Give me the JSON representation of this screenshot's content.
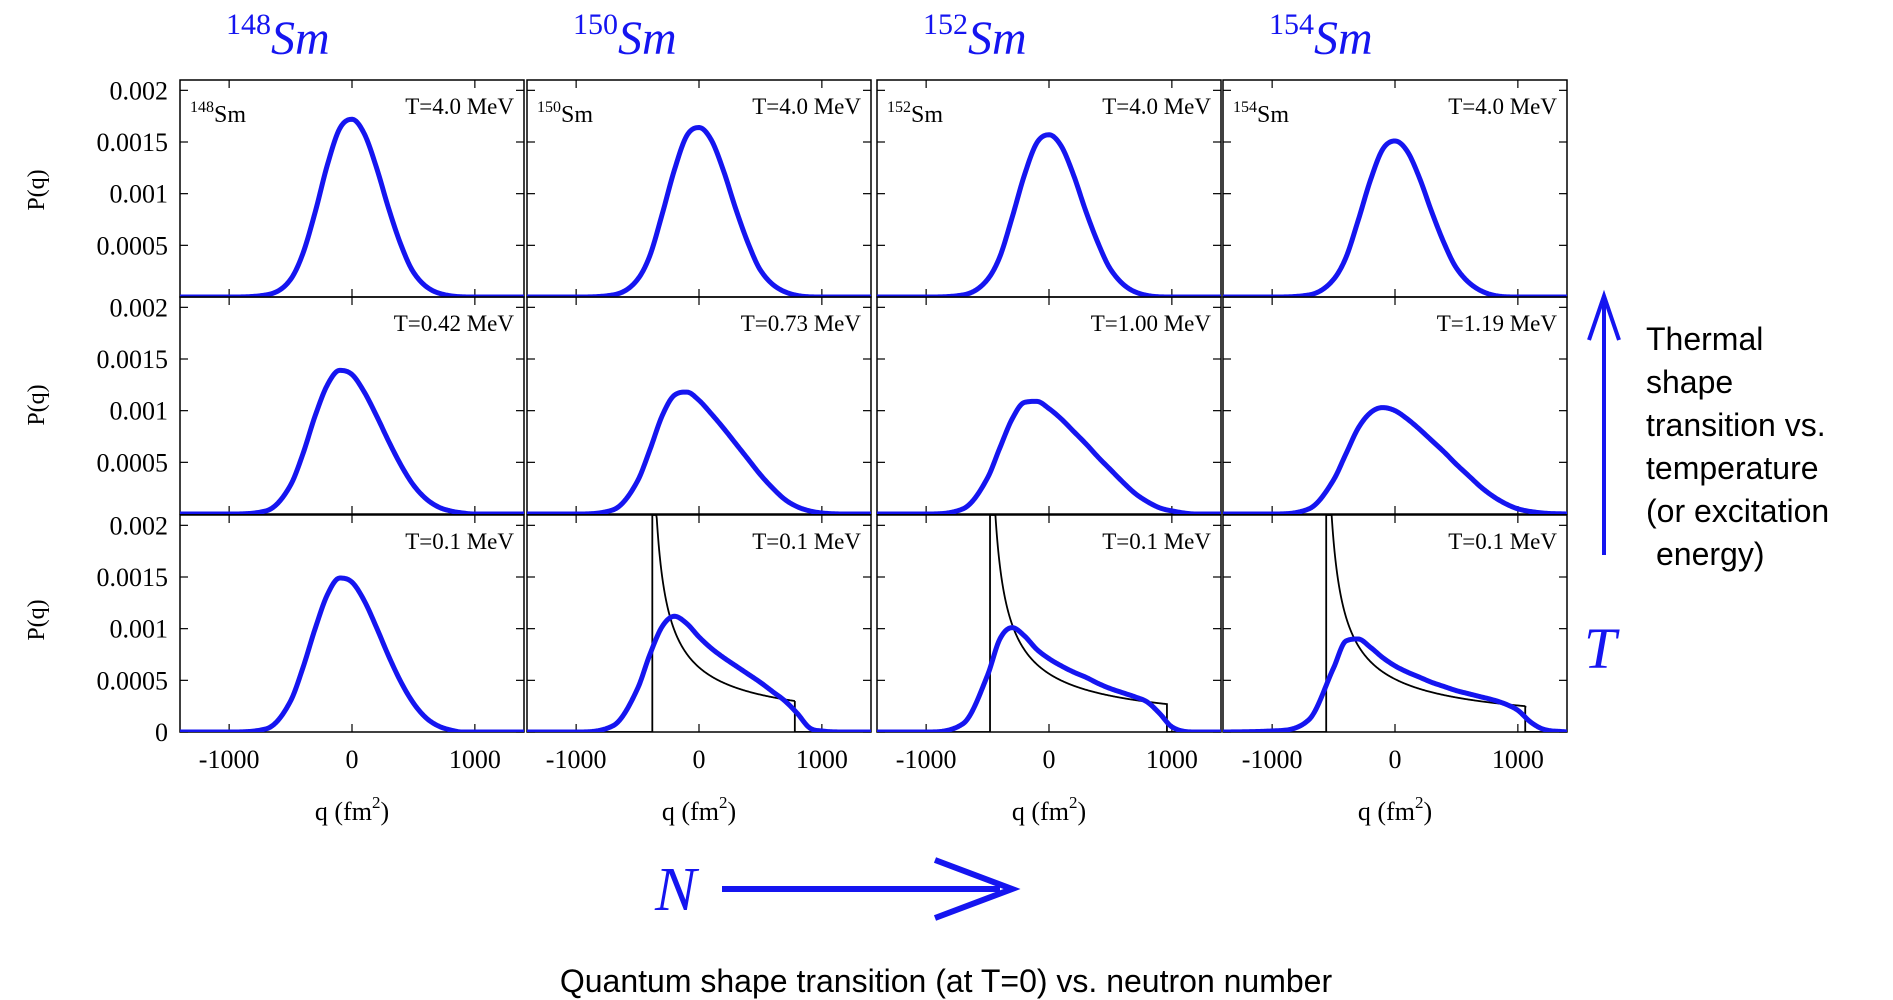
{
  "figure": {
    "annotations": {
      "thermal_lines": [
        "Thermal",
        "shape",
        "transition vs.",
        "temperature",
        "(or excitation",
        "energy)"
      ],
      "t_label": "T",
      "n_label": "N",
      "bottom_caption": "Quantum shape transition (at T=0) vs. neutron number"
    },
    "accent_color": "#1515f0",
    "sharp_color": "#000000"
  },
  "chart_data": {
    "type": "line",
    "layout": "grid 3 rows x 4 columns",
    "ylabel": "P(q)",
    "xlabel": "q (fm²)",
    "xlabel_base": "q (fm",
    "xlabel_sup": "2",
    "xlabel_end": ")",
    "xlim": [
      -1400,
      1400
    ],
    "ylim": [
      0,
      0.0021
    ],
    "xticks": [
      -1000,
      0,
      1000
    ],
    "xtick_labels": [
      "-1000",
      "0",
      "1000"
    ],
    "yticks_upper": [
      0.0005,
      0.001,
      0.0015,
      0.002
    ],
    "ytick_labels_upper": [
      "0.0005",
      "0.001",
      "0.0015",
      "0.002"
    ],
    "yticks_bottom": [
      0,
      0.0005,
      0.001,
      0.0015,
      0.002
    ],
    "ytick_labels_bottom": [
      "0",
      "0.0005",
      "0.001",
      "0.0015",
      "0.002"
    ],
    "columns": [
      {
        "mass": "148",
        "sym": "Sm"
      },
      {
        "mass": "150",
        "sym": "Sm"
      },
      {
        "mass": "152",
        "sym": "Sm"
      },
      {
        "mass": "154",
        "sym": "Sm"
      }
    ],
    "panels": [
      {
        "row": 0,
        "col": 0,
        "temp": "T=4.0 MeV",
        "label": true,
        "x": [
          -1400,
          -1000,
          -700,
          -500,
          -400,
          -300,
          -200,
          -100,
          0,
          100,
          200,
          300,
          400,
          500,
          700,
          1000,
          1400
        ],
        "y": [
          0,
          0,
          2e-05,
          0.00017,
          0.00042,
          0.00082,
          0.00128,
          0.00163,
          0.00172,
          0.00158,
          0.00125,
          0.00085,
          0.0005,
          0.00024,
          4e-05,
          0,
          0
        ]
      },
      {
        "row": 0,
        "col": 1,
        "temp": "T=4.0 MeV",
        "label": true,
        "x": [
          -1400,
          -1000,
          -700,
          -500,
          -400,
          -300,
          -200,
          -100,
          0,
          100,
          200,
          300,
          400,
          500,
          700,
          1000,
          1400
        ],
        "y": [
          0,
          0,
          2e-05,
          0.00017,
          0.0004,
          0.0008,
          0.00123,
          0.00156,
          0.00164,
          0.00152,
          0.00122,
          0.00085,
          0.00052,
          0.00026,
          5e-05,
          0,
          0
        ]
      },
      {
        "row": 0,
        "col": 2,
        "temp": "T=4.0 MeV",
        "label": true,
        "x": [
          -1400,
          -1000,
          -700,
          -500,
          -400,
          -300,
          -200,
          -100,
          0,
          100,
          200,
          300,
          400,
          500,
          700,
          1000,
          1400
        ],
        "y": [
          0,
          0,
          2e-05,
          0.00017,
          0.00039,
          0.00077,
          0.00118,
          0.00149,
          0.00157,
          0.00146,
          0.00118,
          0.00083,
          0.00052,
          0.00027,
          5e-05,
          0,
          0
        ]
      },
      {
        "row": 0,
        "col": 3,
        "temp": "T=4.0 MeV",
        "label": true,
        "x": [
          -1400,
          -1000,
          -700,
          -500,
          -400,
          -300,
          -200,
          -100,
          0,
          100,
          200,
          300,
          400,
          500,
          700,
          1000,
          1400
        ],
        "y": [
          0,
          0,
          2e-05,
          0.00017,
          0.00038,
          0.00074,
          0.00113,
          0.00143,
          0.00151,
          0.00141,
          0.00115,
          0.00082,
          0.00052,
          0.00028,
          6e-05,
          0,
          0
        ]
      },
      {
        "row": 1,
        "col": 0,
        "temp": "T=0.42 MeV",
        "label": false,
        "x": [
          -1400,
          -1000,
          -700,
          -500,
          -400,
          -300,
          -200,
          -100,
          0,
          100,
          200,
          300,
          400,
          500,
          600,
          700,
          800,
          900,
          1000,
          1200,
          1400
        ],
        "y": [
          0,
          0,
          3e-05,
          0.00028,
          0.00058,
          0.00095,
          0.00125,
          0.00139,
          0.00135,
          0.00118,
          0.00095,
          0.0007,
          0.00047,
          0.00028,
          0.00015,
          7e-05,
          3e-05,
          1e-05,
          0,
          0,
          0
        ]
      },
      {
        "row": 1,
        "col": 1,
        "temp": "T=0.73 MeV",
        "label": false,
        "x": [
          -1400,
          -1000,
          -700,
          -500,
          -400,
          -300,
          -200,
          -100,
          0,
          100,
          200,
          300,
          400,
          500,
          600,
          700,
          800,
          900,
          1000,
          1200,
          1400
        ],
        "y": [
          0,
          0,
          4e-05,
          0.00032,
          0.00062,
          0.00095,
          0.00115,
          0.00118,
          0.0011,
          0.00097,
          0.00083,
          0.00068,
          0.00053,
          0.00038,
          0.00025,
          0.00014,
          7e-05,
          3e-05,
          1e-05,
          0,
          0
        ]
      },
      {
        "row": 1,
        "col": 2,
        "temp": "T=1.00 MeV",
        "label": false,
        "x": [
          -1400,
          -1000,
          -700,
          -500,
          -400,
          -300,
          -200,
          -100,
          0,
          100,
          200,
          300,
          400,
          500,
          600,
          700,
          800,
          900,
          1000,
          1200,
          1400
        ],
        "y": [
          0,
          0,
          5e-05,
          0.00035,
          0.00064,
          0.00092,
          0.00108,
          0.00109,
          0.00102,
          0.00092,
          0.0008,
          0.00068,
          0.00055,
          0.00043,
          0.00031,
          0.0002,
          0.00012,
          6e-05,
          3e-05,
          0,
          0
        ]
      },
      {
        "row": 1,
        "col": 3,
        "temp": "T=1.19 MeV",
        "label": false,
        "x": [
          -1400,
          -1000,
          -700,
          -500,
          -400,
          -300,
          -200,
          -100,
          0,
          100,
          200,
          300,
          400,
          500,
          600,
          700,
          800,
          900,
          1000,
          1200,
          1400
        ],
        "y": [
          0,
          0,
          5e-05,
          0.00033,
          0.00058,
          0.00083,
          0.00098,
          0.00103,
          0.001,
          0.00092,
          0.00082,
          0.00071,
          0.0006,
          0.00048,
          0.00037,
          0.00026,
          0.00017,
          0.0001,
          5e-05,
          1e-05,
          0
        ]
      },
      {
        "row": 2,
        "col": 0,
        "temp": "T=0.1 MeV",
        "label": false,
        "x": [
          -1400,
          -1000,
          -700,
          -500,
          -400,
          -300,
          -200,
          -100,
          0,
          100,
          200,
          300,
          400,
          500,
          600,
          700,
          800,
          900,
          1000,
          1200,
          1400
        ],
        "y": [
          0,
          0,
          3e-05,
          0.0003,
          0.00062,
          0.001,
          0.00133,
          0.00149,
          0.00145,
          0.00127,
          0.00101,
          0.00073,
          0.00048,
          0.00028,
          0.00014,
          6e-05,
          2e-05,
          0,
          0,
          0,
          0
        ]
      },
      {
        "row": 2,
        "col": 1,
        "temp": "T=0.1 MeV",
        "label": false,
        "x": [
          -1400,
          -1000,
          -700,
          -500,
          -400,
          -300,
          -200,
          -100,
          0,
          100,
          200,
          300,
          400,
          500,
          600,
          700,
          800,
          900,
          1000,
          1200,
          1400
        ],
        "y": [
          0,
          0,
          6e-05,
          0.00042,
          0.00075,
          0.00102,
          0.00112,
          0.00105,
          0.00092,
          0.00081,
          0.00072,
          0.00064,
          0.00056,
          0.00048,
          0.00039,
          0.0003,
          0.00018,
          4e-05,
          1e-05,
          0,
          0
        ],
        "sharp": {
          "qmin": -380,
          "qmax": 780,
          "q0": -420,
          "p": 0.7,
          "k": 0.0003,
          "ymax": 0.0021
        }
      },
      {
        "row": 2,
        "col": 2,
        "temp": "T=0.1 MeV",
        "label": false,
        "x": [
          -1400,
          -1000,
          -700,
          -500,
          -400,
          -300,
          -200,
          -100,
          0,
          100,
          200,
          300,
          400,
          500,
          600,
          700,
          800,
          900,
          1000,
          1200,
          1400
        ],
        "y": [
          0,
          0,
          8e-05,
          0.00055,
          0.0009,
          0.00101,
          0.00093,
          0.0008,
          0.00071,
          0.00064,
          0.00058,
          0.00053,
          0.00047,
          0.00042,
          0.00038,
          0.00034,
          0.00029,
          0.00018,
          5e-05,
          0,
          0
        ],
        "sharp": {
          "qmin": -480,
          "qmax": 960,
          "q0": -515,
          "p": 0.7,
          "k": 0.00027,
          "ymax": 0.0021
        }
      },
      {
        "row": 2,
        "col": 3,
        "temp": "T=0.1 MeV",
        "label": false,
        "x": [
          -1400,
          -1000,
          -700,
          -500,
          -400,
          -300,
          -200,
          -100,
          0,
          100,
          200,
          300,
          400,
          500,
          600,
          700,
          800,
          900,
          1000,
          1100,
          1200,
          1400
        ],
        "y": [
          0,
          1e-05,
          0.00012,
          0.00062,
          0.00088,
          0.0009,
          0.00082,
          0.00072,
          0.00064,
          0.00058,
          0.00053,
          0.00048,
          0.00044,
          0.0004,
          0.00037,
          0.00034,
          0.00031,
          0.00027,
          0.00021,
          0.0001,
          3e-05,
          0
        ],
        "sharp": {
          "qmin": -560,
          "qmax": 1060,
          "q0": -595,
          "p": 0.7,
          "k": 0.00025,
          "ymax": 0.0021
        }
      }
    ]
  }
}
